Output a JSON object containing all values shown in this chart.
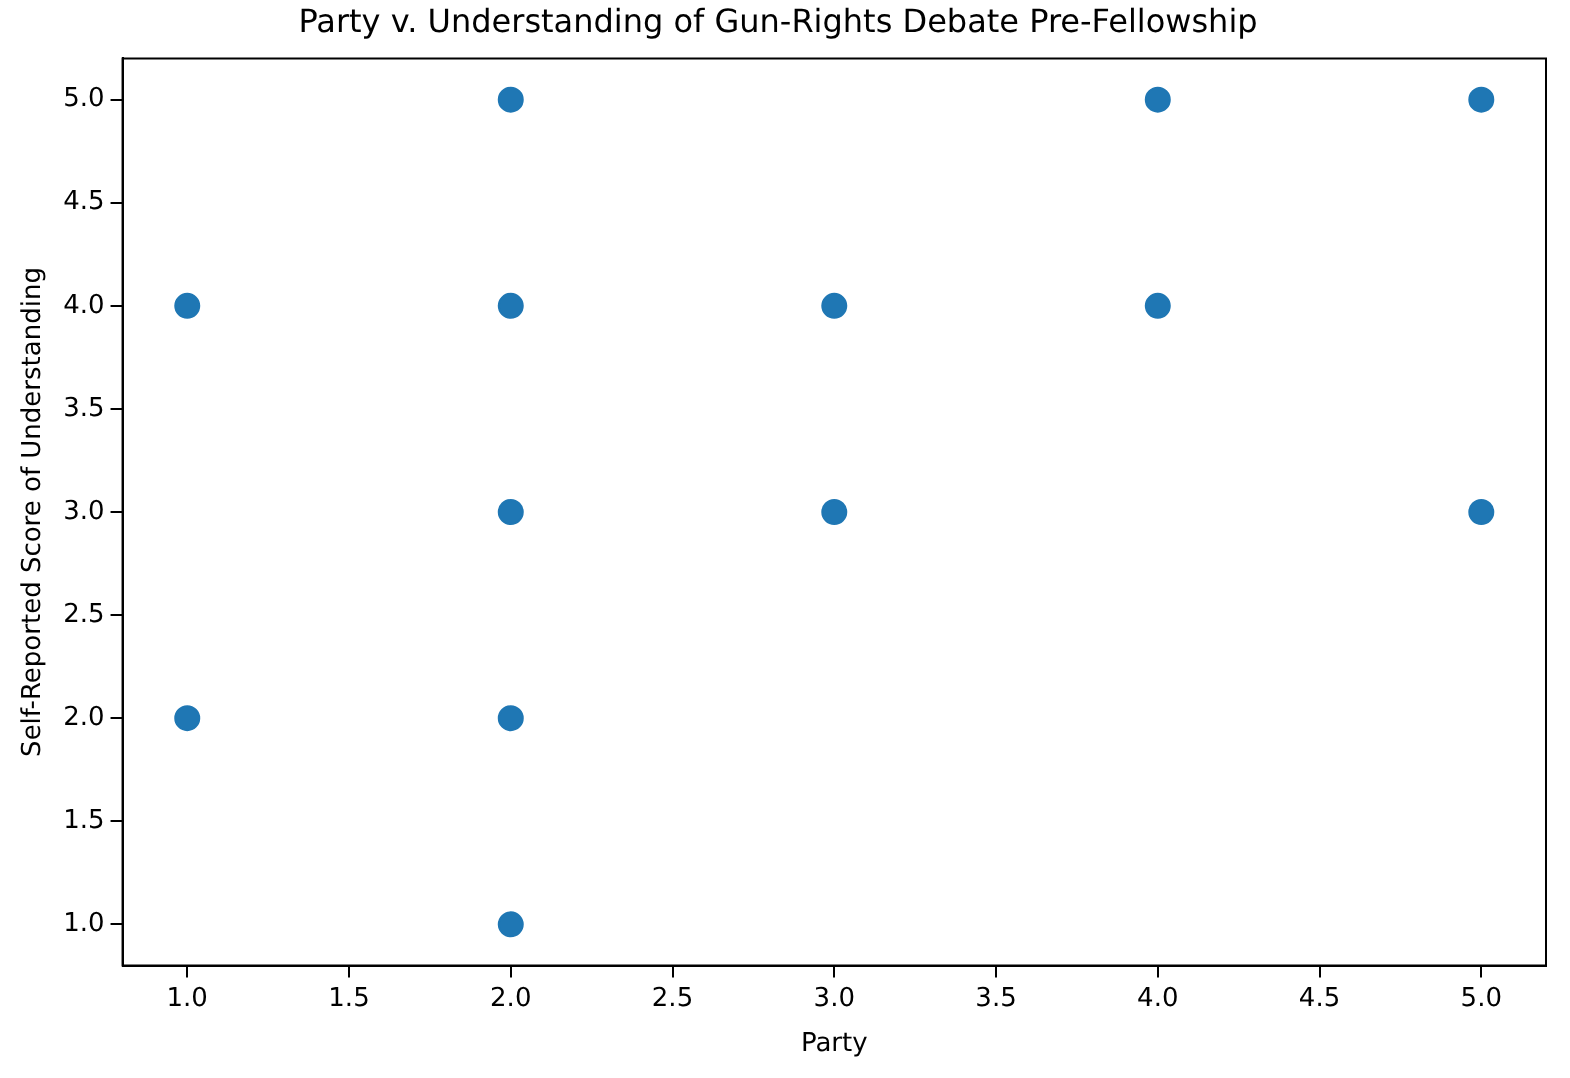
{
  "chart_data": {
    "type": "scatter",
    "title": "Party v. Understanding of Gun-Rights Debate Pre-Fellowship",
    "xlabel": "Party",
    "ylabel": "Self-Reported Score of Understanding",
    "series": [
      {
        "color": "#1f77b4",
        "x": [
          1,
          1,
          2,
          2,
          2,
          2,
          2,
          3,
          3,
          4,
          4,
          5,
          5
        ],
        "values": [
          4,
          2,
          5,
          4,
          3,
          2,
          1,
          4,
          3,
          5,
          4,
          5,
          3
        ]
      }
    ],
    "xlim": [
      0.8,
      5.2
    ],
    "ylim": [
      0.8,
      5.2
    ],
    "xticks": [
      {
        "value": 1,
        "label": "1.0"
      },
      {
        "value": 1.5,
        "label": "1.5"
      },
      {
        "value": 2,
        "label": "2.0"
      },
      {
        "value": 2.5,
        "label": "2.5"
      },
      {
        "value": 3,
        "label": "3.0"
      },
      {
        "value": 3.5,
        "label": "3.5"
      },
      {
        "value": 4,
        "label": "4.0"
      },
      {
        "value": 4.5,
        "label": "4.5"
      },
      {
        "value": 5,
        "label": "5.0"
      }
    ],
    "yticks": [
      {
        "value": 1,
        "label": "1.0"
      },
      {
        "value": 1.5,
        "label": "1.5"
      },
      {
        "value": 2,
        "label": "2.0"
      },
      {
        "value": 2.5,
        "label": "2.5"
      },
      {
        "value": 3,
        "label": "3.0"
      },
      {
        "value": 3.5,
        "label": "3.5"
      },
      {
        "value": 4,
        "label": "4.0"
      },
      {
        "value": 4.5,
        "label": "4.5"
      },
      {
        "value": 5,
        "label": "5.0"
      }
    ],
    "grid": false,
    "legend": false,
    "marker": "circle"
  }
}
